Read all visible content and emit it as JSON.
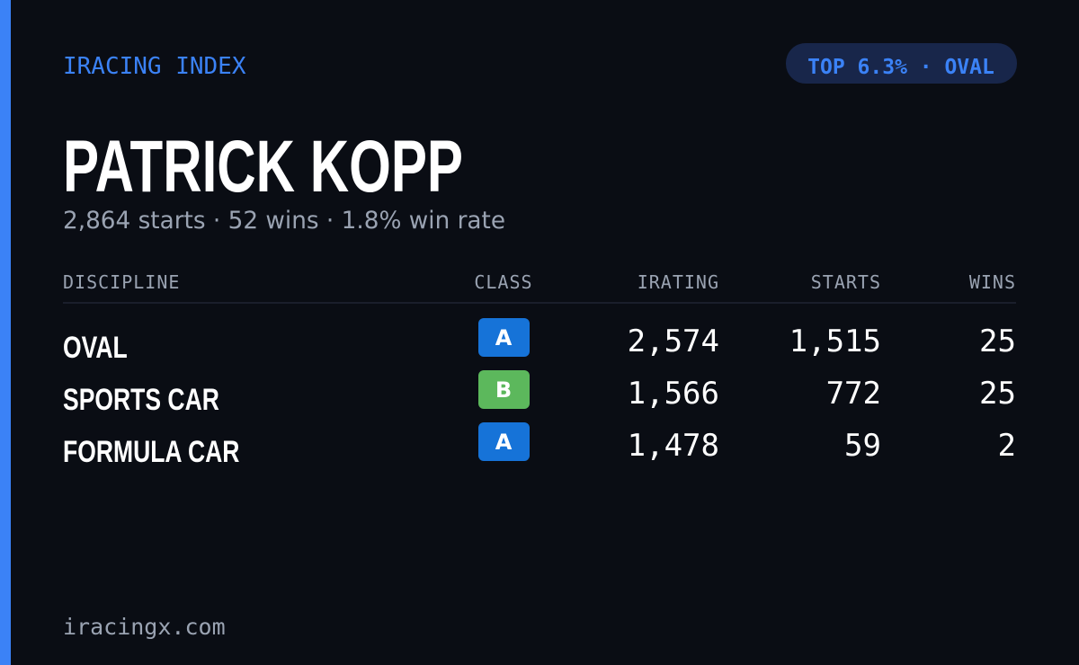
{
  "header": {
    "brand": "IRACING INDEX",
    "badge": "TOP 6.3% · OVAL"
  },
  "name": "PATRICK KOPP",
  "summary": "2,864 starts · 52 wins · 1.8% win rate",
  "table": {
    "columns": [
      "DISCIPLINE",
      "CLASS",
      "IRATING",
      "STARTS",
      "WINS"
    ],
    "rows": [
      [
        "OVAL",
        "A",
        "2,574",
        "1,515",
        "25"
      ],
      [
        "SPORTS CAR",
        "B",
        "1,566",
        "772",
        "25"
      ],
      [
        "FORMULA CAR",
        "A",
        "1,478",
        "59",
        "2"
      ]
    ],
    "class_colors": [
      "#1673d8",
      "#5cb85c",
      "#1673d8"
    ]
  },
  "footer": "iracingx.com"
}
